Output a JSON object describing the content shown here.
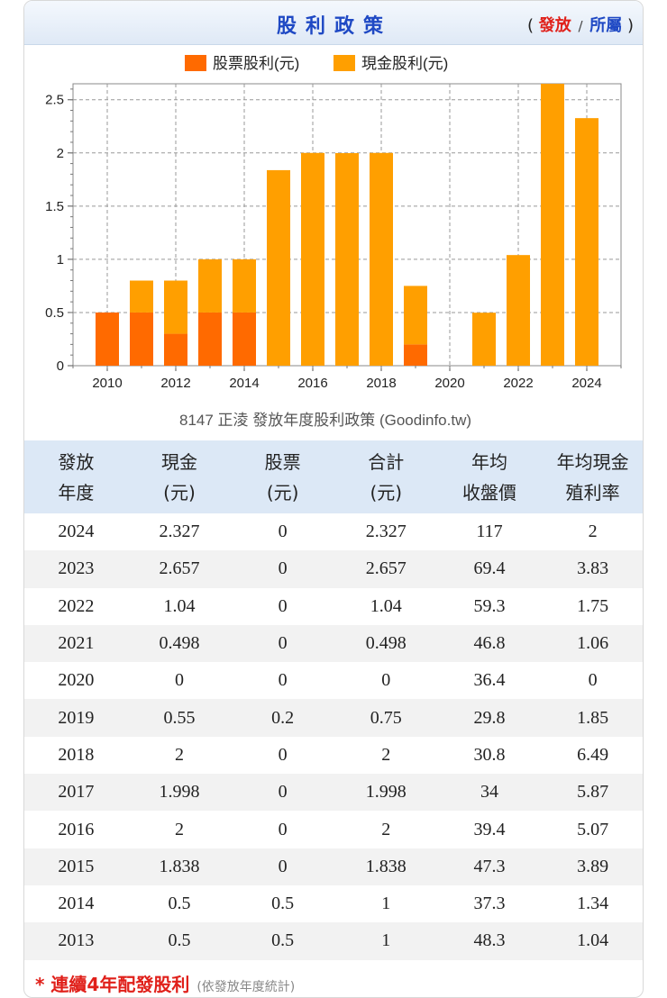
{
  "header": {
    "title": "股利政策",
    "paren_open": "(",
    "link_issue": "發放",
    "sep": "/",
    "link_belong": "所屬",
    "paren_close": ")"
  },
  "colors": {
    "stock": "#ff6a00",
    "cash": "#ff9f00"
  },
  "chart_data": {
    "type": "bar",
    "stacked": true,
    "title": "8147 正淩 發放年度股利政策 (Goodinfo.tw)",
    "legend": [
      "股票股利(元)",
      "現金股利(元)"
    ],
    "legend_position": "top-center",
    "categories": [
      2010,
      2011,
      2012,
      2013,
      2014,
      2015,
      2016,
      2017,
      2018,
      2019,
      2020,
      2021,
      2022,
      2023,
      2024
    ],
    "series": [
      {
        "name": "股票股利(元)",
        "values": [
          0.5,
          0.5,
          0.3,
          0.5,
          0.5,
          0,
          0,
          0,
          0,
          0.2,
          0,
          0,
          0,
          0,
          0
        ]
      },
      {
        "name": "現金股利(元)",
        "values": [
          0,
          0.3,
          0.5,
          0.5,
          0.5,
          1.838,
          2,
          1.998,
          2,
          0.55,
          0,
          0.498,
          1.04,
          2.657,
          2.327
        ]
      }
    ],
    "x_tick_labels": [
      "2010",
      "2012",
      "2014",
      "2016",
      "2018",
      "2020",
      "2022",
      "2024"
    ],
    "y_tick_labels": [
      "0",
      "0.5",
      "1",
      "1.5",
      "2",
      "2.5"
    ],
    "ylim": [
      0,
      2.65
    ],
    "grid": true
  },
  "table": {
    "headers": [
      [
        "發放",
        "年度"
      ],
      [
        "現金",
        "(元)"
      ],
      [
        "股票",
        "(元)"
      ],
      [
        "合計",
        "(元)"
      ],
      [
        "年均",
        "收盤價"
      ],
      [
        "年均現金",
        "殖利率"
      ]
    ],
    "rows": [
      [
        "2024",
        "2.327",
        "0",
        "2.327",
        "117",
        "2"
      ],
      [
        "2023",
        "2.657",
        "0",
        "2.657",
        "69.4",
        "3.83"
      ],
      [
        "2022",
        "1.04",
        "0",
        "1.04",
        "59.3",
        "1.75"
      ],
      [
        "2021",
        "0.498",
        "0",
        "0.498",
        "46.8",
        "1.06"
      ],
      [
        "2020",
        "0",
        "0",
        "0",
        "36.4",
        "0"
      ],
      [
        "2019",
        "0.55",
        "0.2",
        "0.75",
        "29.8",
        "1.85"
      ],
      [
        "2018",
        "2",
        "0",
        "2",
        "30.8",
        "6.49"
      ],
      [
        "2017",
        "1.998",
        "0",
        "1.998",
        "34",
        "5.87"
      ],
      [
        "2016",
        "2",
        "0",
        "2",
        "39.4",
        "5.07"
      ],
      [
        "2015",
        "1.838",
        "0",
        "1.838",
        "47.3",
        "3.89"
      ],
      [
        "2014",
        "0.5",
        "0.5",
        "1",
        "37.3",
        "1.34"
      ],
      [
        "2013",
        "0.5",
        "0.5",
        "1",
        "48.3",
        "1.04"
      ]
    ]
  },
  "footnote": {
    "text": "* 連續4年配發股利",
    "note": "(依發放年度統計)"
  }
}
